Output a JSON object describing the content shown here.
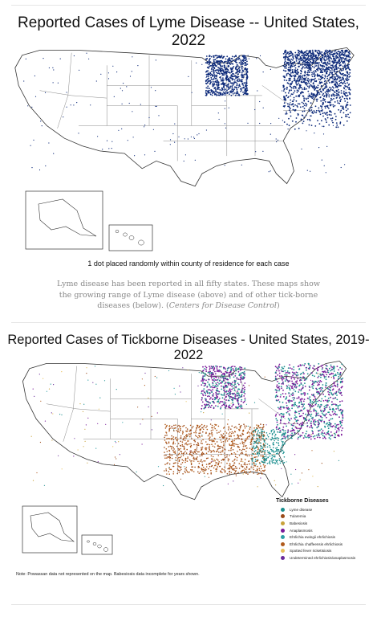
{
  "top_map": {
    "title": "Reported Cases of Lyme Disease -- United States, 2022",
    "dot_note": "1 dot placed randomly within county of residence for each case",
    "dot_color": "#0d2a7a"
  },
  "caption": {
    "text": "Lyme disease has been reported in all fifty states. These maps show the growing range of Lyme disease (above) and of other tick-borne diseases (below). (",
    "source": "Centers for Disease Control",
    "close": ")"
  },
  "bottom_map": {
    "title": "Reported Cases of Tickborne Diseases - United States, 2019-2022",
    "legend_title": "Tickborne Diseases",
    "legend": [
      {
        "label": "Lyme disease",
        "color": "#1b8f8f"
      },
      {
        "label": "Tularemia",
        "color": "#9a4a1a"
      },
      {
        "label": "Babesiosis",
        "color": "#c8a23a"
      },
      {
        "label": "Anaplasmosis",
        "color": "#7a1a9a"
      },
      {
        "label": "Ehrlichia ewingii ehrlichiosis",
        "color": "#2f9fa6"
      },
      {
        "label": "Ehrlichia chaffeensis ehrlichiosis",
        "color": "#b05a1c"
      },
      {
        "label": "Spotted fever rickettsiosis",
        "color": "#e8c05a"
      },
      {
        "label": "Undetermined ehrlichiosis/anaplasmosis",
        "color": "#6a2a9a"
      }
    ],
    "footnote": "Note: Powassan data not represented on the map. Babesiosis data incomplete for years shown."
  }
}
